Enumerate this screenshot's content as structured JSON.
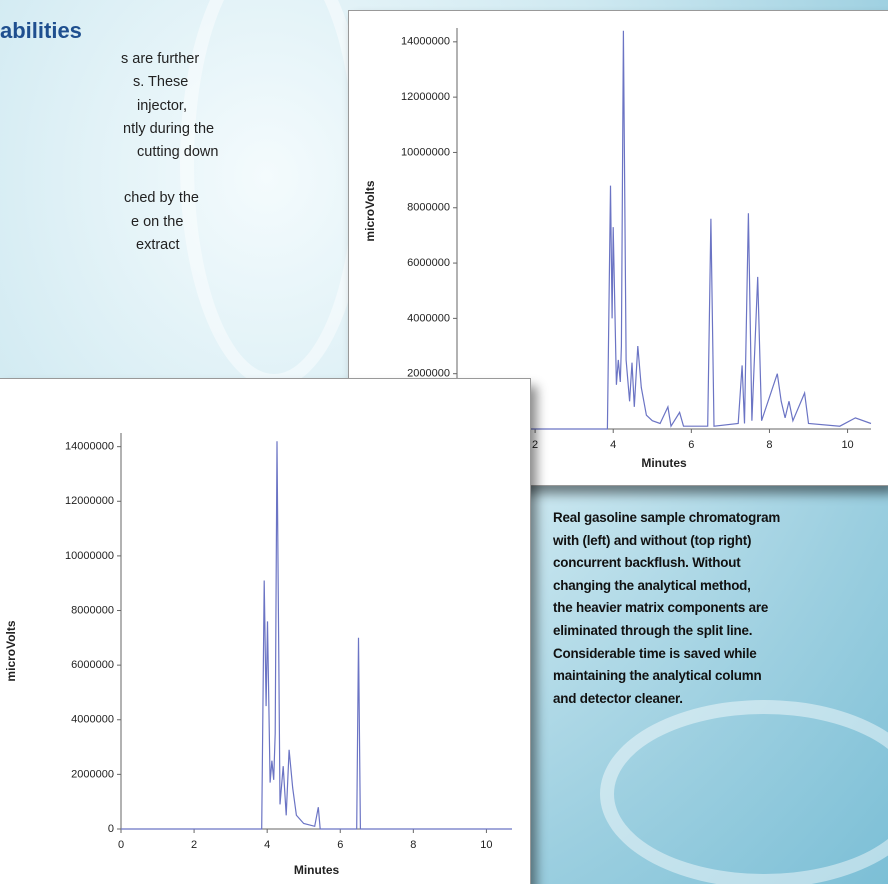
{
  "section": {
    "heading": "abilities",
    "lines": [
      "s are further",
      "s. These",
      "injector,",
      "ntly during the",
      "cutting down",
      "ched by the",
      "e on the",
      "extract"
    ]
  },
  "caption": {
    "lines": [
      "Real gasoline sample chromatogram",
      "with (left) and without (top right)",
      "concurrent backflush. Without",
      "changing the analytical method,",
      "the heavier matrix components are",
      "eliminated through the split line.",
      "Considerable time is saved while",
      "maintaining the analytical column",
      "and detector cleaner."
    ]
  },
  "chart_data": [
    {
      "type": "line",
      "xlabel": "Minutes",
      "ylabel": "microVolts",
      "color": "#6b74c4",
      "xlim": [
        0,
        10.6
      ],
      "ylim": [
        0,
        14500000
      ],
      "xticks": [
        0,
        2,
        4,
        6,
        8,
        10
      ],
      "yticks": [
        0,
        2000000,
        4000000,
        6000000,
        8000000,
        10000000,
        12000000,
        14000000
      ],
      "x": [
        0,
        3.85,
        3.93,
        3.97,
        4.0,
        4.08,
        4.13,
        4.18,
        4.21,
        4.26,
        4.33,
        4.42,
        4.48,
        4.54,
        4.63,
        4.72,
        4.85,
        5.0,
        5.2,
        5.4,
        5.48,
        5.7,
        5.8,
        6.42,
        6.5,
        6.58,
        7.2,
        7.3,
        7.36,
        7.46,
        7.55,
        7.7,
        7.8,
        8.2,
        8.3,
        8.4,
        8.5,
        8.6,
        8.9,
        9.0,
        9.8,
        10.2,
        10.6
      ],
      "values": [
        0,
        0,
        8800000,
        4000000,
        7300000,
        1600000,
        2500000,
        1700000,
        3000000,
        14400000,
        2500000,
        1000000,
        2400000,
        800000,
        3000000,
        1500000,
        500000,
        300000,
        200000,
        800000,
        100000,
        600000,
        100000,
        100000,
        7600000,
        100000,
        200000,
        2300000,
        200000,
        7800000,
        300000,
        5500000,
        300000,
        2000000,
        1000000,
        400000,
        1000000,
        300000,
        1300000,
        200000,
        100000,
        400000,
        200000
      ]
    },
    {
      "type": "line",
      "xlabel": "Minutes",
      "ylabel": "microVolts",
      "color": "#6b74c4",
      "xlim": [
        0,
        10.7
      ],
      "ylim": [
        0,
        14500000
      ],
      "xticks": [
        0,
        2,
        4,
        6,
        8,
        10
      ],
      "yticks": [
        0,
        2000000,
        4000000,
        6000000,
        8000000,
        10000000,
        12000000,
        14000000
      ],
      "x": [
        0,
        3.85,
        3.92,
        3.97,
        4.01,
        4.08,
        4.13,
        4.18,
        4.22,
        4.27,
        4.35,
        4.44,
        4.52,
        4.6,
        4.7,
        4.8,
        5.0,
        5.3,
        5.4,
        5.45,
        6.45,
        6.5,
        6.55,
        10.7
      ],
      "values": [
        0,
        0,
        9100000,
        4500000,
        7600000,
        1700000,
        2500000,
        1800000,
        3500000,
        14200000,
        900000,
        2300000,
        500000,
        2900000,
        1500000,
        500000,
        200000,
        100000,
        800000,
        0,
        0,
        7000000,
        0,
        0
      ]
    }
  ]
}
